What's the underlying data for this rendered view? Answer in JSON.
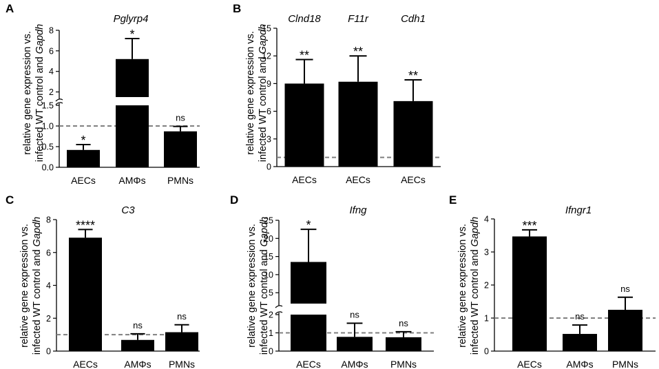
{
  "chart_data": [
    {
      "panel": "A",
      "type": "bar",
      "title": "Pglyrp4",
      "ylabel_line1": "relative gene expression vs.",
      "ylabel_line2_pre": "infected WT control and ",
      "ylabel_line2_gene": "Gapdh",
      "y_axis_break": true,
      "lower_range": [
        0,
        1.5
      ],
      "lower_ticks": [
        "0.0",
        "0.5",
        "1.0",
        "1.5"
      ],
      "upper_range": [
        1.5,
        8
      ],
      "upper_ticks": [
        "2",
        "4",
        "6",
        "8"
      ],
      "reference_line": 1.0,
      "categories": [
        "AECs",
        "AMΦs",
        "PMNs"
      ],
      "values": [
        0.42,
        5.2,
        0.87
      ],
      "errors": [
        0.13,
        2.0,
        0.12
      ],
      "significance": [
        "*",
        "*",
        "ns"
      ]
    },
    {
      "panel": "B",
      "type": "bar",
      "titles": [
        "Clnd18",
        "F11r",
        "Cdh1"
      ],
      "ylabel_line1": "relative gene expression vs.",
      "ylabel_line2_pre": "infected WT control and ",
      "ylabel_line2_gene": "Gapdh",
      "ylim": [
        0,
        15
      ],
      "ticks": [
        "0",
        "3",
        "6",
        "9",
        "12",
        "15"
      ],
      "reference_line": 1.0,
      "categories": [
        "AECs",
        "AECs",
        "AECs"
      ],
      "values": [
        9.0,
        9.2,
        7.1
      ],
      "errors": [
        2.6,
        2.8,
        2.3
      ],
      "significance": [
        "**",
        "**",
        "**"
      ]
    },
    {
      "panel": "C",
      "type": "bar",
      "title": "C3",
      "ylabel_line1": "relative gene expression vs.",
      "ylabel_line2_pre": "infected WT control and ",
      "ylabel_line2_gene": "Gapdh",
      "ylim": [
        0,
        8
      ],
      "ticks": [
        "0",
        "2",
        "4",
        "6",
        "8"
      ],
      "reference_line": 1.0,
      "categories": [
        "AECs",
        "AMΦs",
        "PMNs"
      ],
      "values": [
        6.9,
        0.68,
        1.15
      ],
      "errors": [
        0.5,
        0.37,
        0.45
      ],
      "significance": [
        "****",
        "ns",
        "ns"
      ]
    },
    {
      "panel": "D",
      "type": "bar",
      "title": "Ifng",
      "ylabel_line1": "relative gene expression vs.",
      "ylabel_line2_pre": "infected WT control and ",
      "ylabel_line2_gene": "Gapdh",
      "y_axis_break": true,
      "lower_range": [
        0,
        2
      ],
      "lower_ticks": [
        "0",
        "1",
        "2"
      ],
      "upper_range": [
        2,
        25
      ],
      "upper_ticks": [
        "5",
        "10",
        "15",
        "20",
        "25"
      ],
      "reference_line": 1.0,
      "categories": [
        "AECs",
        "AMΦs",
        "PMNs"
      ],
      "values": [
        13.5,
        0.78,
        0.76
      ],
      "errors": [
        9.0,
        0.75,
        0.3
      ],
      "significance": [
        "*",
        "ns",
        "ns"
      ]
    },
    {
      "panel": "E",
      "type": "bar",
      "title": "Ifngr1",
      "ylabel_line1": "relative gene expression vs.",
      "ylabel_line2_pre": "infected WT control and ",
      "ylabel_line2_gene": "Gapdh",
      "ylim": [
        0,
        4
      ],
      "ticks": [
        "0",
        "1",
        "2",
        "3",
        "4"
      ],
      "reference_line": 1.0,
      "categories": [
        "AECs",
        "AMΦs",
        "PMNs"
      ],
      "values": [
        3.47,
        0.52,
        1.25
      ],
      "errors": [
        0.2,
        0.27,
        0.38
      ],
      "significance": [
        "***",
        "ns",
        "ns"
      ]
    }
  ],
  "colors": {
    "bar": "#000000",
    "reference_line": "#7f7f7f",
    "text": "#000000"
  }
}
